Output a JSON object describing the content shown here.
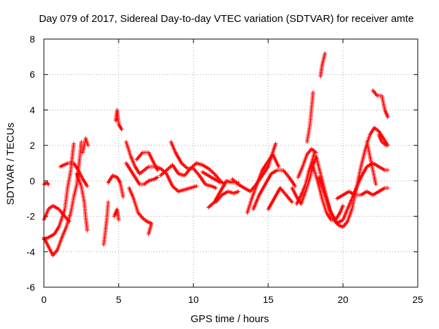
{
  "chart_data": {
    "type": "scatter",
    "title": "Day 079 of 2017, Sidereal Day-to-day VTEC variation (SDTVAR) for receiver amte",
    "xlabel": "GPS time / hours",
    "ylabel": "SDTVAR / TECUs",
    "xlim": [
      0,
      25
    ],
    "ylim": [
      -6,
      8
    ],
    "xticks": [
      0,
      5,
      10,
      15,
      20,
      25
    ],
    "yticks": [
      -6,
      -4,
      -2,
      0,
      2,
      4,
      6,
      8
    ],
    "grid": true,
    "marker": "+",
    "color": "#ff0000",
    "tracks": [
      [
        [
          0.0,
          -0.2
        ],
        [
          0.2,
          -0.1
        ],
        [
          0.3,
          -0.2
        ]
      ],
      [
        [
          0.0,
          -2.2
        ],
        [
          0.3,
          -1.6
        ],
        [
          0.6,
          -1.4
        ],
        [
          1.0,
          -1.6
        ],
        [
          1.4,
          -2.0
        ],
        [
          1.7,
          -2.3
        ]
      ],
      [
        [
          0.0,
          -3.2
        ],
        [
          0.3,
          -3.7
        ],
        [
          0.6,
          -4.2
        ],
        [
          0.9,
          -3.9
        ],
        [
          1.2,
          -3.2
        ],
        [
          1.5,
          -2.6
        ],
        [
          1.8,
          -1.8
        ],
        [
          2.0,
          -0.9
        ],
        [
          2.2,
          -0.2
        ],
        [
          2.3,
          0.6
        ],
        [
          2.4,
          1.3
        ],
        [
          2.5,
          2.2
        ]
      ],
      [
        [
          0.0,
          -3.3
        ],
        [
          0.3,
          -3.2
        ],
        [
          0.7,
          -3.0
        ],
        [
          1.0,
          -2.6
        ],
        [
          1.4,
          -1.6
        ],
        [
          1.6,
          -0.3
        ],
        [
          1.8,
          0.6
        ],
        [
          1.9,
          1.4
        ],
        [
          2.0,
          2.1
        ]
      ],
      [
        [
          1.1,
          0.8
        ],
        [
          1.6,
          1.0
        ],
        [
          2.0,
          1.0
        ],
        [
          2.3,
          0.6
        ],
        [
          2.6,
          0.1
        ],
        [
          2.9,
          -0.3
        ]
      ],
      [
        [
          2.2,
          0.4
        ],
        [
          2.5,
          -0.3
        ],
        [
          2.7,
          -1.2
        ],
        [
          2.8,
          -2.1
        ],
        [
          2.9,
          -2.8
        ]
      ],
      [
        [
          2.6,
          1.6
        ],
        [
          2.8,
          2.4
        ],
        [
          2.95,
          2.0
        ]
      ],
      [
        [
          4.0,
          -3.6
        ],
        [
          4.2,
          -2.2
        ],
        [
          4.3,
          -1.2
        ]
      ],
      [
        [
          4.3,
          -0.1
        ],
        [
          4.6,
          0.3
        ],
        [
          4.9,
          0.2
        ],
        [
          5.1,
          -0.1
        ],
        [
          5.3,
          -0.9
        ]
      ],
      [
        [
          4.8,
          3.4
        ],
        [
          4.9,
          4.0
        ],
        [
          5.0,
          3.2
        ],
        [
          5.2,
          2.9
        ]
      ],
      [
        [
          4.7,
          -2.0
        ],
        [
          4.9,
          -1.6
        ],
        [
          5.0,
          -2.2
        ]
      ],
      [
        [
          5.5,
          1.0
        ],
        [
          5.8,
          0.6
        ],
        [
          6.1,
          0.2
        ],
        [
          6.4,
          -0.2
        ],
        [
          6.7,
          -0.2
        ],
        [
          7.0,
          0.0
        ],
        [
          7.4,
          0.1
        ],
        [
          7.6,
          0.2
        ]
      ],
      [
        [
          5.5,
          2.2
        ],
        [
          5.8,
          1.4
        ],
        [
          6.1,
          0.8
        ],
        [
          6.4,
          0.4
        ],
        [
          6.7,
          0.6
        ],
        [
          7.0,
          0.8
        ],
        [
          7.4,
          0.8
        ],
        [
          7.8,
          0.7
        ],
        [
          8.2,
          0.4
        ],
        [
          8.6,
          -0.3
        ],
        [
          9.0,
          -0.6
        ],
        [
          9.4,
          -0.5
        ],
        [
          9.8,
          -0.4
        ],
        [
          10.2,
          -0.3
        ]
      ],
      [
        [
          6.2,
          1.2
        ],
        [
          6.6,
          1.6
        ],
        [
          7.0,
          1.6
        ],
        [
          7.3,
          1.1
        ],
        [
          7.6,
          0.6
        ]
      ],
      [
        [
          5.7,
          -0.4
        ],
        [
          6.0,
          -1.0
        ],
        [
          6.3,
          -1.8
        ],
        [
          6.6,
          -2.1
        ],
        [
          6.9,
          -2.3
        ],
        [
          7.2,
          -2.4
        ],
        [
          7.0,
          -3.0
        ]
      ],
      [
        [
          8.5,
          2.2
        ],
        [
          8.8,
          1.6
        ],
        [
          9.2,
          1.0
        ],
        [
          9.6,
          0.7
        ],
        [
          10.0,
          0.7
        ],
        [
          10.4,
          0.3
        ],
        [
          10.8,
          -0.2
        ],
        [
          11.2,
          -0.3
        ],
        [
          11.5,
          -0.4
        ]
      ],
      [
        [
          7.8,
          0.3
        ],
        [
          8.2,
          0.6
        ],
        [
          8.6,
          0.9
        ],
        [
          9.0,
          0.4
        ],
        [
          9.4,
          0.3
        ],
        [
          9.8,
          0.7
        ],
        [
          10.2,
          1.0
        ],
        [
          10.6,
          0.9
        ],
        [
          11.0,
          0.7
        ],
        [
          11.4,
          0.4
        ],
        [
          11.8,
          0.0
        ],
        [
          12.1,
          -0.2
        ]
      ],
      [
        [
          10.6,
          0.5
        ],
        [
          11.0,
          0.3
        ],
        [
          11.4,
          0.1
        ],
        [
          11.8,
          -0.1
        ]
      ],
      [
        [
          11.0,
          -1.5
        ],
        [
          11.4,
          -1.2
        ],
        [
          11.8,
          -0.6
        ],
        [
          12.2,
          0.0
        ],
        [
          12.6,
          -0.1
        ],
        [
          13.0,
          -0.1
        ]
      ],
      [
        [
          11.5,
          -1.2
        ],
        [
          11.9,
          -0.8
        ],
        [
          12.3,
          -0.6
        ],
        [
          12.7,
          -0.7
        ],
        [
          13.0,
          -0.6
        ]
      ],
      [
        [
          12.6,
          0.1
        ],
        [
          13.0,
          -0.2
        ],
        [
          13.4,
          -0.4
        ],
        [
          13.8,
          -0.6
        ],
        [
          14.2,
          -0.2
        ],
        [
          14.6,
          0.3
        ],
        [
          15.0,
          0.8
        ],
        [
          15.3,
          1.6
        ],
        [
          15.5,
          2.1
        ]
      ],
      [
        [
          13.6,
          -1.8
        ],
        [
          13.9,
          -1.0
        ],
        [
          14.2,
          -0.3
        ],
        [
          14.6,
          0.6
        ],
        [
          15.0,
          1.1
        ],
        [
          15.3,
          1.5
        ],
        [
          15.7,
          0.8
        ]
      ],
      [
        [
          14.0,
          -1.6
        ],
        [
          14.4,
          -0.8
        ],
        [
          14.8,
          -0.2
        ],
        [
          15.2,
          0.4
        ],
        [
          15.6,
          0.6
        ],
        [
          16.0,
          0.6
        ],
        [
          16.4,
          0.2
        ],
        [
          16.8,
          -0.3
        ]
      ],
      [
        [
          15.0,
          -1.6
        ],
        [
          15.4,
          -1.0
        ],
        [
          15.8,
          -0.4
        ],
        [
          16.2,
          -0.8
        ],
        [
          16.6,
          -1.2
        ]
      ],
      [
        [
          16.9,
          -1.3
        ],
        [
          17.2,
          -0.8
        ],
        [
          17.5,
          -0.2
        ],
        [
          17.7,
          0.5
        ],
        [
          17.9,
          1.0
        ],
        [
          18.1,
          1.6
        ]
      ],
      [
        [
          16.6,
          -0.4
        ],
        [
          16.9,
          -0.9
        ],
        [
          17.2,
          -1.3
        ],
        [
          17.5,
          -0.6
        ],
        [
          17.8,
          0.2
        ],
        [
          18.0,
          0.9
        ],
        [
          18.2,
          1.3
        ]
      ],
      [
        [
          17.0,
          0.2
        ],
        [
          17.3,
          0.8
        ],
        [
          17.6,
          1.5
        ],
        [
          17.9,
          1.8
        ],
        [
          18.2,
          1.6
        ]
      ],
      [
        [
          17.6,
          2.2
        ],
        [
          17.8,
          3.2
        ],
        [
          17.9,
          4.1
        ],
        [
          18.0,
          5.0
        ]
      ],
      [
        [
          18.5,
          5.9
        ],
        [
          18.6,
          6.5
        ],
        [
          18.8,
          7.2
        ]
      ],
      [
        [
          18.0,
          0.8
        ],
        [
          18.3,
          0.0
        ],
        [
          18.6,
          -1.0
        ],
        [
          18.9,
          -1.8
        ],
        [
          19.2,
          -2.2
        ],
        [
          19.5,
          -2.2
        ],
        [
          19.8,
          -1.8
        ],
        [
          20.0,
          -1.4
        ]
      ],
      [
        [
          18.2,
          1.4
        ],
        [
          18.5,
          0.4
        ],
        [
          18.8,
          -0.6
        ],
        [
          19.1,
          -1.6
        ],
        [
          19.4,
          -2.2
        ],
        [
          19.7,
          -2.5
        ],
        [
          20.0,
          -2.6
        ],
        [
          20.3,
          -2.3
        ],
        [
          20.6,
          -1.6
        ],
        [
          20.9,
          -0.4
        ],
        [
          21.2,
          0.8
        ],
        [
          21.5,
          1.8
        ],
        [
          21.8,
          2.6
        ],
        [
          22.1,
          3.0
        ],
        [
          22.4,
          2.8
        ],
        [
          22.7,
          2.4
        ],
        [
          23.0,
          2.0
        ]
      ],
      [
        [
          18.4,
          0.2
        ],
        [
          18.8,
          -0.8
        ],
        [
          19.2,
          -1.8
        ],
        [
          19.6,
          -2.4
        ],
        [
          20.0,
          -2.2
        ],
        [
          20.4,
          -1.4
        ],
        [
          20.8,
          -0.6
        ],
        [
          21.2,
          0.2
        ],
        [
          21.6,
          0.8
        ],
        [
          22.0,
          1.0
        ],
        [
          22.4,
          0.8
        ],
        [
          22.8,
          0.6
        ],
        [
          23.0,
          0.6
        ]
      ],
      [
        [
          19.6,
          -1.0
        ],
        [
          20.0,
          -0.8
        ],
        [
          20.4,
          -0.6
        ],
        [
          20.8,
          -0.8
        ],
        [
          21.2,
          -0.8
        ],
        [
          21.6,
          -0.6
        ],
        [
          22.0,
          -0.8
        ],
        [
          22.4,
          -0.6
        ],
        [
          22.8,
          -0.4
        ],
        [
          23.0,
          -0.4
        ]
      ],
      [
        [
          21.6,
          2.2
        ],
        [
          21.8,
          1.4
        ],
        [
          22.0,
          0.6
        ],
        [
          22.2,
          -0.2
        ]
      ],
      [
        [
          22.4,
          2.6
        ],
        [
          22.6,
          2.2
        ],
        [
          22.9,
          2.0
        ]
      ],
      [
        [
          22.0,
          5.1
        ],
        [
          22.3,
          4.8
        ],
        [
          22.6,
          4.8
        ],
        [
          22.8,
          4.0
        ],
        [
          23.0,
          3.6
        ]
      ]
    ]
  }
}
